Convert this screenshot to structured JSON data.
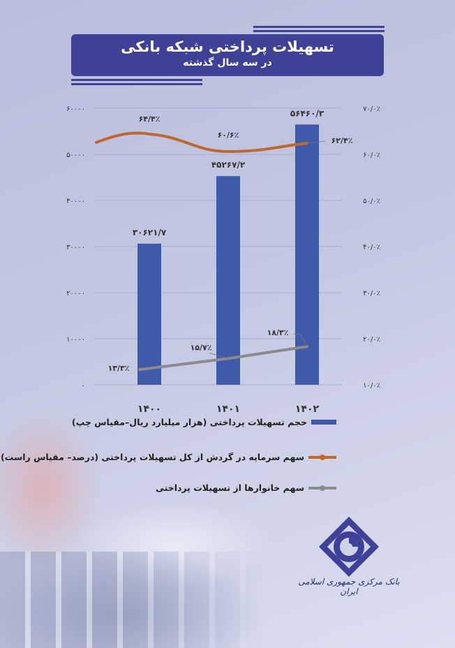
{
  "header": {
    "title": "تسهیلات پرداختی شبکه بانکی",
    "subtitle": "در سه سال گذشته"
  },
  "colors": {
    "bars": "#3e5aa8",
    "orange_line": "#c0672c",
    "gray_line": "#8a8a8f",
    "title_bg": "#3e4196"
  },
  "chart_data": {
    "type": "bar+line",
    "categories": [
      "1400",
      "1401",
      "1402"
    ],
    "category_labels": [
      "۱۴۰۰",
      "۱۴۰۱",
      "۱۴۰۲"
    ],
    "left_axis": {
      "ylim": [
        0,
        60000
      ],
      "ticks": [
        "۰",
        "۱۰۰۰۰",
        "۲۰۰۰۰",
        "۳۰۰۰۰",
        "۴۰۰۰۰",
        "۵۰۰۰۰",
        "۶۰۰۰۰"
      ]
    },
    "right_axis": {
      "ylim": [
        10,
        70
      ],
      "ticks": [
        "۱۰/۰٪",
        "۲۰/۰٪",
        "۳۰/۰٪",
        "۴۰/۰٪",
        "۵۰/۰٪",
        "۶۰/۰٪",
        "۷۰/۰٪"
      ]
    },
    "grid": true,
    "series": [
      {
        "name": "حجم تسهیلات پرداختی (هزار میلیارد ریال–مقیاس چپ)",
        "type": "bar",
        "axis": "left",
        "values": [
          30621.7,
          45267.2,
          56460.3
        ],
        "labels": [
          "۳۰۶۲۱/۷",
          "۴۵۲۶۷/۲",
          "۵۶۴۶۰/۳"
        ]
      },
      {
        "name": "سهم سرمایه در گردش از کل تسهیلات پرداختی (درصد– مقیاس راست)",
        "type": "line",
        "axis": "right",
        "values": [
          64.4,
          60.6,
          62.4
        ],
        "labels": [
          "۶۴/۴٪",
          "۶۰/۶٪",
          "۶۲/۴٪"
        ]
      },
      {
        "name": "سهم خانوارها از تسهیلات پرداختی",
        "type": "line",
        "axis": "right",
        "values": [
          13.3,
          15.7,
          18.3
        ],
        "labels": [
          "۱۳/۳٪",
          "۱۵/۷٪",
          "۱۸/۳٪"
        ]
      }
    ],
    "legend_position": "bottom"
  },
  "footer": {
    "bank_name": "بانک مرکزی جمهوری اسلامی ایران",
    "logo_icon": "central-bank-logo"
  }
}
